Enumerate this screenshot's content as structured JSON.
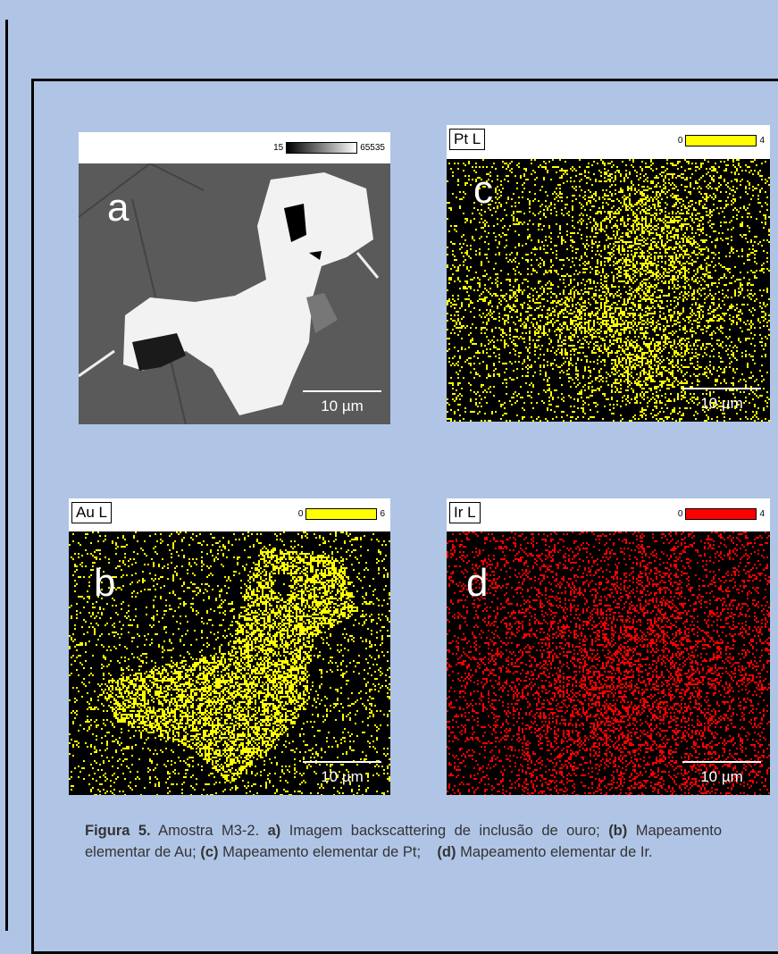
{
  "panels": {
    "a": {
      "letter": "a",
      "scale_min": "15",
      "scale_max": "65535",
      "scale_bar": "10 µm"
    },
    "c": {
      "letter": "c",
      "element": "Pt L",
      "scale_min": "0",
      "scale_max": "4",
      "scale_bar": "10 µm",
      "color": "#ffff00"
    },
    "b": {
      "letter": "b",
      "element": "Au L",
      "scale_min": "0",
      "scale_max": "6",
      "scale_bar": "10 µm",
      "color": "#ffff00"
    },
    "d": {
      "letter": "d",
      "element": "Ir L",
      "scale_min": "0",
      "scale_max": "4",
      "scale_bar": "10 µm",
      "color": "#ff0000"
    }
  },
  "caption": [
    {
      "text": "Figura 5.",
      "bold": true
    },
    {
      "text": " Amostra M3-2. ",
      "bold": false
    },
    {
      "text": "a)",
      "bold": true
    },
    {
      "text": " Imagem backscattering de inclusão de ouro; ",
      "bold": false
    },
    {
      "text": "(b)",
      "bold": true
    },
    {
      "text": " Mapeamento elementar de Au; ",
      "bold": false
    },
    {
      "text": "(c)",
      "bold": true
    },
    {
      "text": " Mapeamento elementar de Pt;    ",
      "bold": false
    },
    {
      "text": "(d)",
      "bold": true
    },
    {
      "text": " Mapeamento elementar de Ir.",
      "bold": false
    }
  ]
}
